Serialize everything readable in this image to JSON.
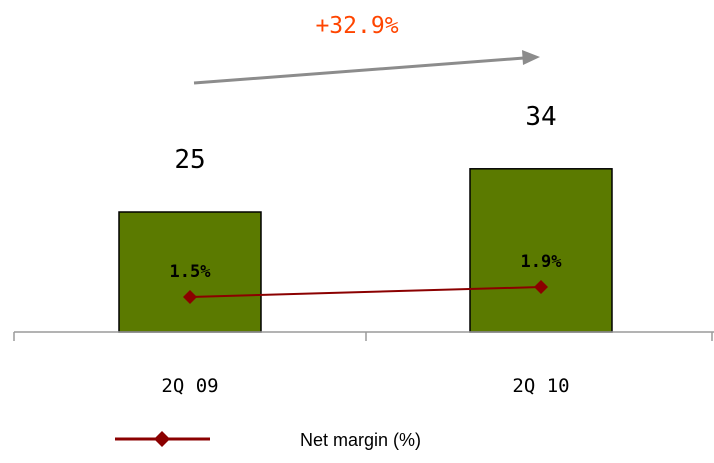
{
  "chart_data": {
    "type": "bar",
    "categories": [
      "2Q 09",
      "2Q 10"
    ],
    "values": [
      25,
      34
    ],
    "value_labels": [
      "25",
      "34"
    ],
    "bar_color": "#5b7a00",
    "line_series": {
      "name": "Net margin (%)",
      "values": [
        1.5,
        1.9
      ],
      "labels": [
        "1.5%",
        "1.9%"
      ],
      "color": "#8b0000"
    },
    "growth": {
      "label": "+32.9%",
      "color": "#ff4500",
      "arrow_color": "#8c8c8c"
    },
    "legend": {
      "position": "bottom-center"
    }
  }
}
